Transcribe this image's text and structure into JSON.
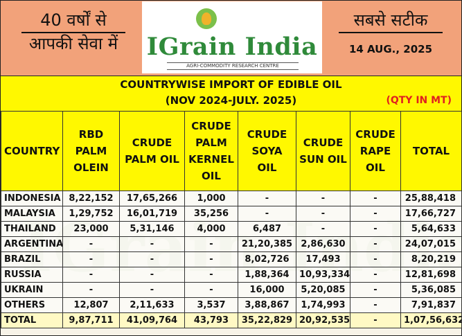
{
  "header": {
    "left_line1": "40 वर्षों से",
    "left_line2": "आपकी सेवा में",
    "brand_name": "IGrain India",
    "brand_subtitle": "AGRI-COMMODITY RESEARCH CENTRE",
    "right_line1": "सबसे सटीक",
    "date": "14 AUG., 2025"
  },
  "title": {
    "line1": "COUNTRYWISE IMPORT OF EDIBLE OIL",
    "line2": "(NOV 2024-JULY. 2025)",
    "unit": "(QTY IN MT)"
  },
  "table": {
    "columns": [
      {
        "label": "COUNTRY",
        "color": "#111111"
      },
      {
        "label": "RBD\nPALM\nOLEIN",
        "color": "#111111"
      },
      {
        "label": "CRUDE\nPALM OIL",
        "color": "#111111"
      },
      {
        "label": "CRUDE\nPALM\nKERNEL\nOIL",
        "color": "#111111"
      },
      {
        "label": "CRUDE\nSOYA\nOIL",
        "color": "#111111"
      },
      {
        "label": "CRUDE\nSUN OIL",
        "color": "#111111"
      },
      {
        "label": "CRUDE\nRAPE\nOIL",
        "color": "#111111"
      },
      {
        "label": "TOTAL",
        "color": "#111111"
      }
    ],
    "rows": [
      [
        "INDONESIA",
        "8,22,152",
        "17,65,266",
        "1,000",
        "-",
        "-",
        "-",
        "25,88,418"
      ],
      [
        "MALAYSIA",
        "1,29,752",
        "16,01,719",
        "35,256",
        "-",
        "-",
        "-",
        "17,66,727"
      ],
      [
        "THAILAND",
        "23,000",
        "5,31,146",
        "4,000",
        "6,487",
        "-",
        "-",
        "5,64,633"
      ],
      [
        "ARGENTINA",
        "-",
        "-",
        "-",
        "21,20,385",
        "2,86,630",
        "-",
        "24,07,015"
      ],
      [
        "BRAZIL",
        "-",
        "-",
        "-",
        "8,02,726",
        "17,493",
        "-",
        "8,20,219"
      ],
      [
        "RUSSIA",
        "-",
        "-",
        "-",
        "1,88,364",
        "10,93,334",
        "-",
        "12,81,698"
      ],
      [
        "UKRAIN",
        "-",
        "-",
        "-",
        "16,000",
        "5,20,085",
        "-",
        "5,36,085"
      ],
      [
        "OTHERS",
        "12,807",
        "2,11,633",
        "3,537",
        "3,88,867",
        "1,74,993",
        "-",
        "7,91,837"
      ],
      [
        "TOTAL",
        "9,87,711",
        "41,09,764",
        "43,793",
        "35,22,829",
        "20,92,535",
        "-",
        "1,07,56,632"
      ]
    ]
  },
  "colors": {
    "header_bg": "#f2a27a",
    "title_bg": "#fff800",
    "unit_text": "#e02020",
    "brand_green": "#2f8a3a"
  }
}
